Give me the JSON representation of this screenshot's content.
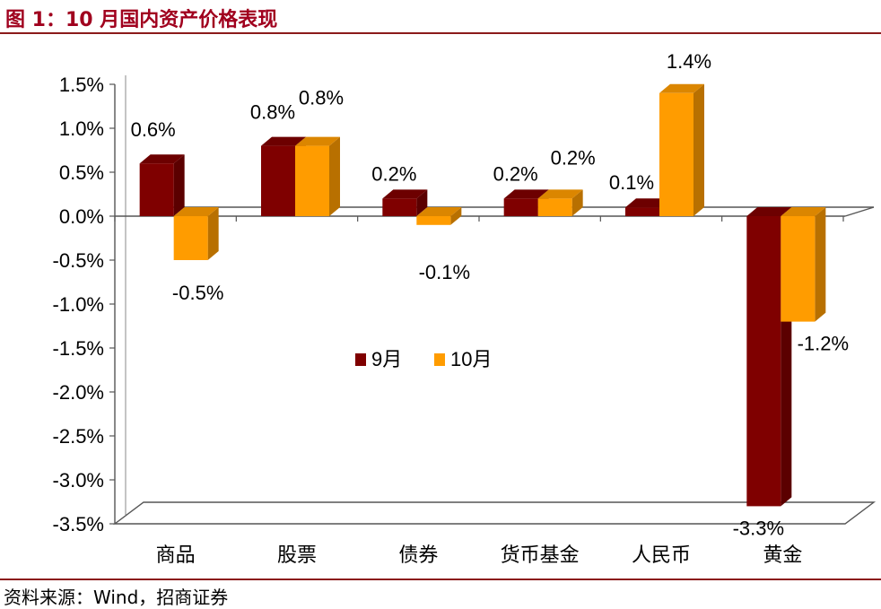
{
  "title": "图 1：10 月国内资产价格表现",
  "source": "资料来源：Wind，招商证券",
  "colors": {
    "sep": "#7f0000",
    "oct": "#ff9c00",
    "title": "#a0001e"
  },
  "chart_data": {
    "type": "bar",
    "categories": [
      "商品",
      "股票",
      "债券",
      "货币基金",
      "人民币",
      "黄金"
    ],
    "series": [
      {
        "name": "9月",
        "values": [
          0.6,
          0.8,
          0.2,
          0.2,
          0.1,
          -3.3
        ],
        "labels": [
          "0.6%",
          "0.8%",
          "0.2%",
          "0.2%",
          "0.1%",
          "-3.3%"
        ]
      },
      {
        "name": "10月",
        "values": [
          -0.5,
          0.8,
          -0.1,
          0.2,
          1.4,
          -1.2
        ],
        "labels": [
          "-0.5%",
          "0.8%",
          "-0.1%",
          "0.2%",
          "1.4%",
          "-1.2%"
        ]
      }
    ],
    "yticks": [
      1.5,
      1.0,
      0.5,
      0.0,
      -0.5,
      -1.0,
      -1.5,
      -2.0,
      -2.5,
      -3.0,
      -3.5
    ],
    "ytick_labels": [
      "1.5%",
      "1.0%",
      "0.5%",
      "0.0%",
      "-0.5%",
      "-1.0%",
      "-1.5%",
      "-2.0%",
      "-2.5%",
      "-3.0%",
      "-3.5%"
    ],
    "ylim": [
      -3.5,
      1.5
    ],
    "legend": "center",
    "grid": false,
    "style": "3d-column"
  }
}
